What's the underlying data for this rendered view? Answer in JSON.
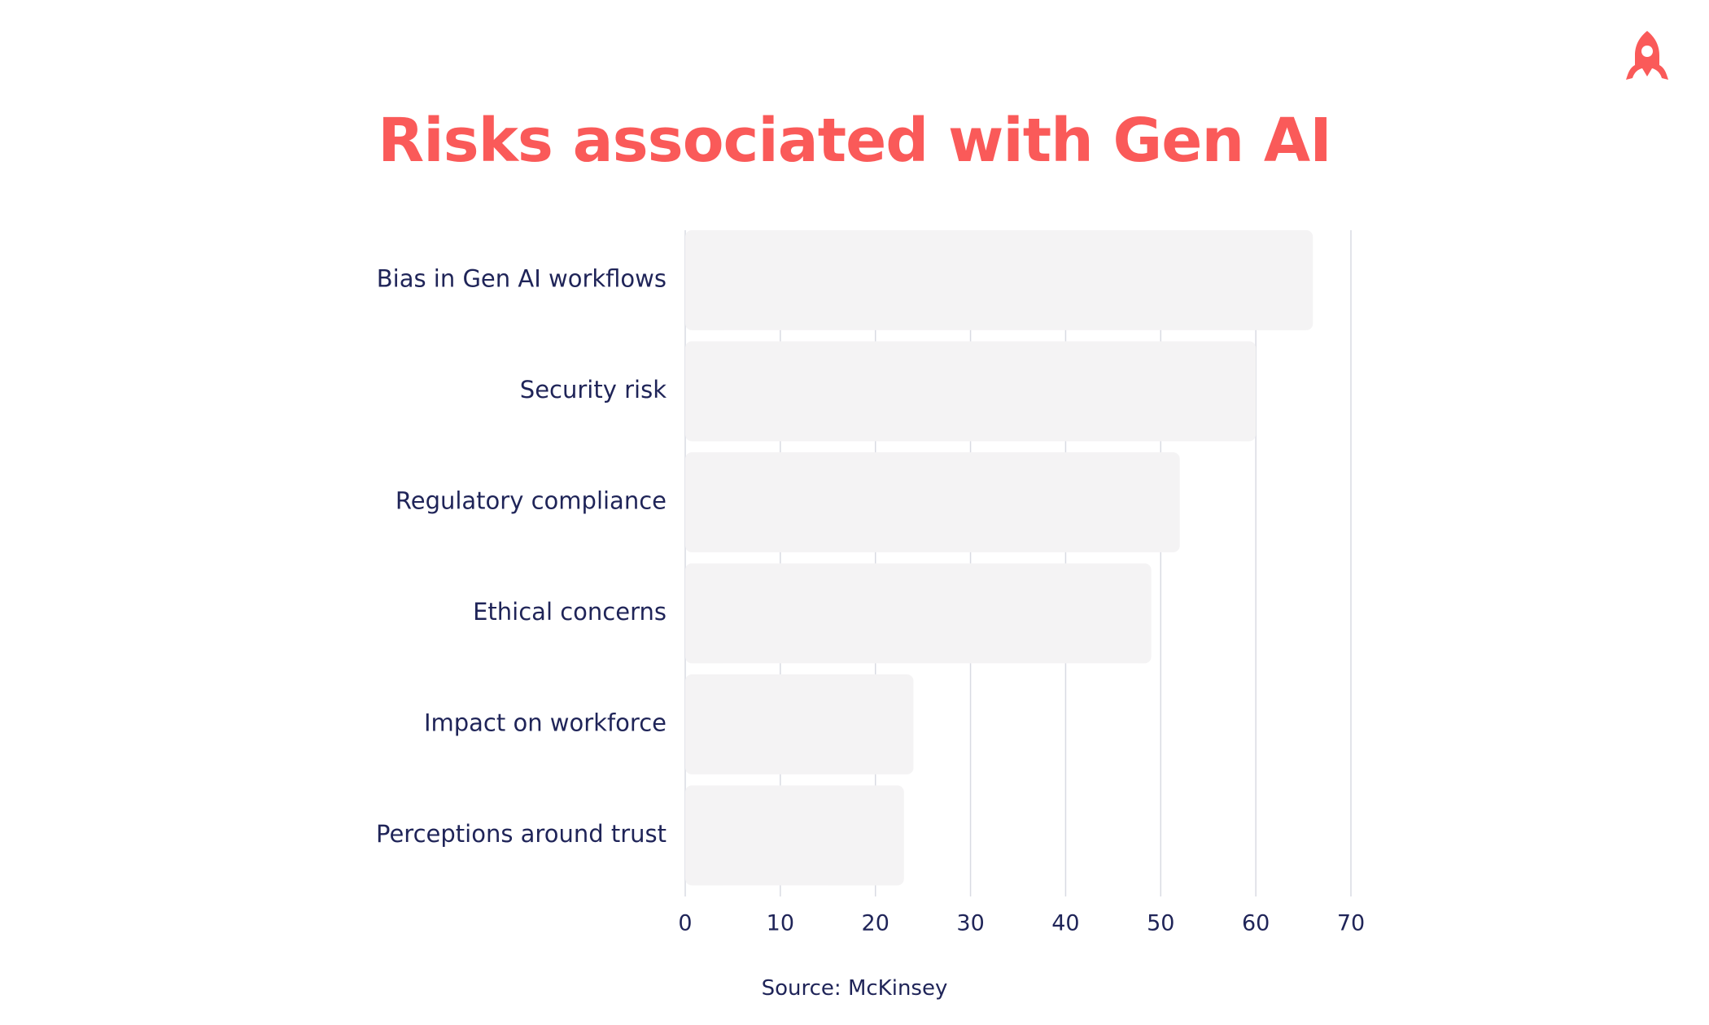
{
  "colors": {
    "accent": "#fa5a59",
    "text": "#1f2458",
    "bar": "#f4f3f4",
    "grid": "#d9dbe3"
  },
  "logo": {
    "icon": "rocket-logo-icon"
  },
  "chart_data": {
    "type": "bar",
    "orientation": "horizontal",
    "title": "Risks associated with Gen AI",
    "categories": [
      "Bias in Gen AI workflows",
      "Security risk",
      "Regulatory compliance",
      "Ethical concerns",
      "Impact on workforce",
      "Perceptions around trust"
    ],
    "values": [
      66,
      60,
      52,
      49,
      24,
      23
    ],
    "xlim": [
      0,
      70
    ],
    "xticks": [
      0,
      10,
      20,
      30,
      40,
      50,
      60,
      70
    ],
    "xlabel": "",
    "ylabel": "",
    "grid": "vertical",
    "legend": "none",
    "source": "Source: McKinsey"
  }
}
